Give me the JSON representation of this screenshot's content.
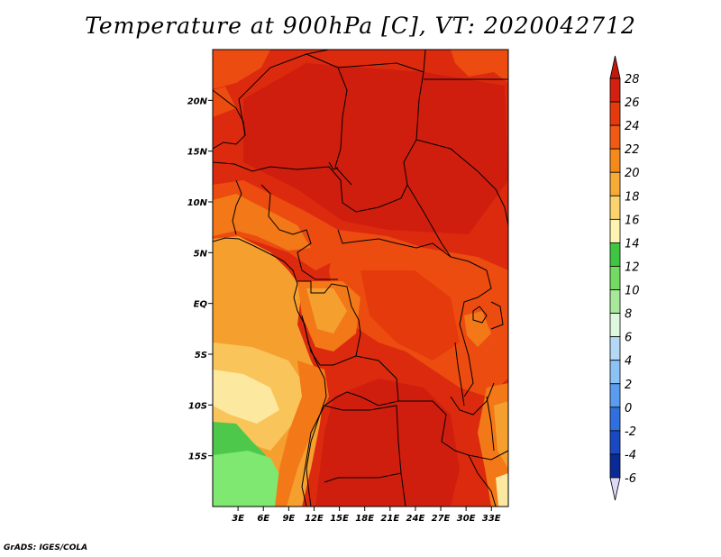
{
  "title": "Temperature at 900hPa [C], VT: 2020042712",
  "credit": "GrADS: IGES/COLA",
  "map": {
    "variable": "Temperature",
    "level": "900hPa",
    "units": "C",
    "valid_time": "2020042712",
    "lat_labels": [
      "20N",
      "15N",
      "10N",
      "5N",
      "EQ",
      "5S",
      "10S",
      "15S"
    ],
    "lat_values": [
      20,
      15,
      10,
      5,
      0,
      -5,
      -10,
      -15
    ],
    "lon_labels": [
      "3E",
      "6E",
      "9E",
      "12E",
      "15E",
      "18E",
      "21E",
      "24E",
      "27E",
      "30E",
      "33E"
    ],
    "lon_values": [
      3,
      6,
      9,
      12,
      15,
      18,
      21,
      24,
      27,
      30,
      33
    ],
    "lon_range": [
      0,
      35
    ],
    "lat_range": [
      -20,
      25
    ]
  },
  "colorbar": {
    "labels": [
      "28",
      "26",
      "24",
      "22",
      "20",
      "18",
      "16",
      "14",
      "12",
      "10",
      "8",
      "6",
      "4",
      "2",
      "0",
      "-2",
      "-4",
      "-6"
    ],
    "colors": [
      "#d42010",
      "#e53a0c",
      "#f05a14",
      "#f58a1a",
      "#f7ab36",
      "#fbd36c",
      "#fef3b0",
      "#3ec640",
      "#74db62",
      "#a8e89b",
      "#dff7df",
      "#b5d8f7",
      "#8dc2f5",
      "#5a9df0",
      "#2f6fe0",
      "#1848c4",
      "#0a2a98",
      "#0a1468"
    ],
    "top_cap_color": "#c01a0c",
    "bottom_cap_color": "#dcd8f5"
  },
  "colors": {
    "c28plus": "#d01e0e",
    "c26": "#dc2a0e",
    "c24": "#ec4c10",
    "c22": "#f27818",
    "c20": "#f5a02e",
    "c18": "#f9c45a",
    "c16": "#fde8a0",
    "c14": "#4ec84a",
    "c12": "#7ee870",
    "border": "#000000"
  }
}
